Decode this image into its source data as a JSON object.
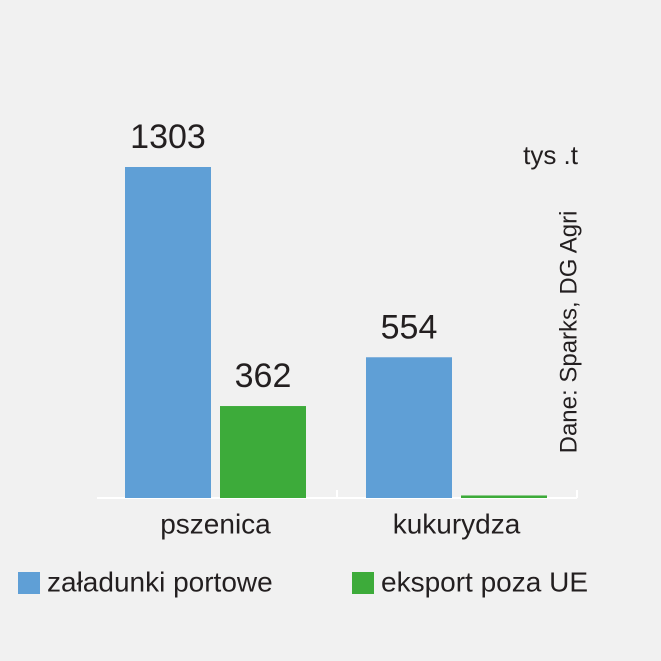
{
  "chart_data": {
    "type": "bar",
    "unit": "tys .t",
    "source": "Dane: Sparks, DG Agri",
    "categories": [
      "pszenica",
      "kukurydza"
    ],
    "series": [
      {
        "name": "załadunki portowe",
        "color": "#5f9fd6",
        "values": [
          1303,
          554
        ],
        "value_labels": [
          "1303",
          "554"
        ]
      },
      {
        "name": "eksport poza UE",
        "color": "#3dab3a",
        "values": [
          362,
          10
        ],
        "value_labels": [
          "362",
          null
        ]
      }
    ]
  }
}
